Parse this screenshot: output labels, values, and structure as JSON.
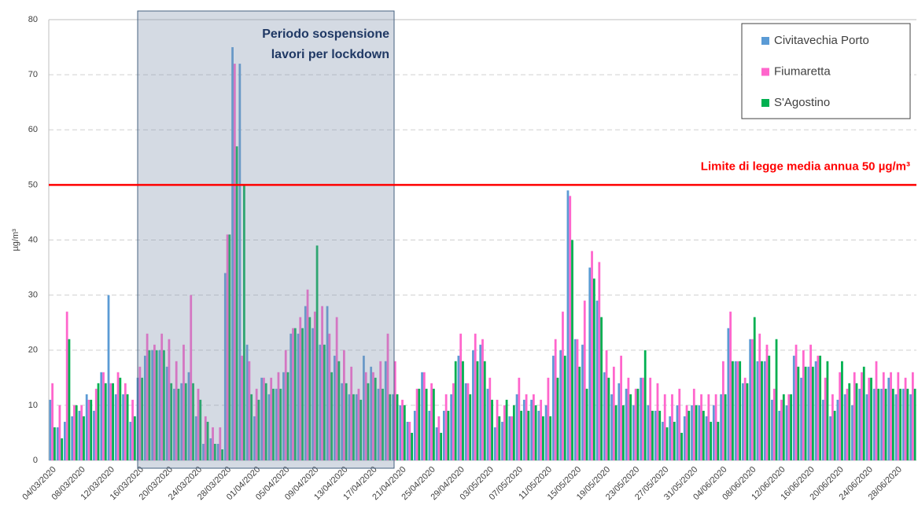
{
  "chart_data": {
    "type": "bar",
    "ylabel": "µg/m³",
    "ylim": [
      0,
      80
    ],
    "yticks": [
      0,
      10,
      20,
      30,
      40,
      50,
      60,
      70,
      80
    ],
    "grid": true,
    "legend": "top-right",
    "annotation": [
      "Periodo sospensione",
      "lavori per lockdown"
    ],
    "reference_line": {
      "value": 50,
      "label": "Limite di legge media annua 50 µg/m³",
      "color": "#ff0000"
    },
    "categories": [
      "04/03/2020",
      null,
      null,
      null,
      "08/03/2020",
      null,
      null,
      null,
      "12/03/2020",
      null,
      null,
      null,
      "16/03/2020",
      null,
      null,
      null,
      "20/03/2020",
      null,
      null,
      null,
      "24/03/2020",
      null,
      null,
      null,
      "28/03/2020",
      null,
      null,
      null,
      "01/04/2020",
      null,
      null,
      null,
      "05/04/2020",
      null,
      null,
      null,
      "09/04/2020",
      null,
      null,
      null,
      "13/04/2020",
      null,
      null,
      null,
      "17/04/2020",
      null,
      null,
      null,
      "21/04/2020",
      null,
      null,
      null,
      "25/04/2020",
      null,
      null,
      null,
      "29/04/2020",
      null,
      null,
      null,
      "03/05/2020",
      null,
      null,
      null,
      "07/05/2020",
      null,
      null,
      null,
      "11/05/2020",
      null,
      null,
      null,
      "15/05/2020",
      null,
      null,
      null,
      "19/05/2020",
      null,
      null,
      null,
      "23/05/2020",
      null,
      null,
      null,
      "27/05/2020",
      null,
      null,
      null,
      "31/05/2020",
      null,
      null,
      null,
      "04/06/2020",
      null,
      null,
      null,
      "08/06/2020",
      null,
      null,
      null,
      "12/06/2020",
      null,
      null,
      null,
      "16/06/2020",
      null,
      null,
      null,
      "20/06/2020",
      null,
      null,
      null,
      "24/06/2020",
      null,
      null,
      null,
      "28/06/2020",
      null,
      null
    ],
    "series": [
      {
        "name": "Civitavechia Porto",
        "color": "#5b9bd5",
        "values": [
          11,
          6,
          7,
          8,
          9,
          12,
          9,
          16,
          30,
          12,
          12,
          7,
          15,
          19,
          20,
          20,
          17,
          13,
          14,
          16,
          8,
          3,
          4,
          3,
          34,
          75,
          72,
          21,
          8,
          15,
          12,
          13,
          16,
          23,
          23,
          28,
          24,
          21,
          28,
          19,
          14,
          12,
          12,
          19,
          17,
          13,
          18,
          12,
          10,
          7,
          9,
          16,
          9,
          6,
          9,
          12,
          19,
          14,
          20,
          21,
          13,
          6,
          7,
          8,
          12,
          11,
          11,
          9,
          10,
          19,
          20,
          49,
          22,
          21,
          35,
          29,
          16,
          12,
          14,
          13,
          10,
          15,
          10,
          9,
          7,
          8,
          10,
          8,
          10,
          10,
          8,
          10,
          12,
          24,
          18,
          14,
          22,
          18,
          18,
          11,
          9,
          10,
          19,
          15,
          17,
          18,
          11,
          8,
          11,
          12,
          10,
          13,
          12,
          13,
          13,
          15,
          12,
          13,
          12
        ]
      },
      {
        "name": "Fiumaretta",
        "color": "#ff66cc",
        "values": [
          14,
          10,
          27,
          10,
          10,
          11,
          13,
          16,
          14,
          16,
          14,
          11,
          17,
          23,
          21,
          23,
          22,
          18,
          21,
          30,
          13,
          8,
          6,
          6,
          41,
          72,
          19,
          18,
          13,
          15,
          15,
          16,
          20,
          24,
          26,
          31,
          27,
          28,
          23,
          26,
          20,
          17,
          13,
          16,
          16,
          18,
          23,
          18,
          11,
          7,
          13,
          16,
          14,
          8,
          12,
          14,
          23,
          14,
          23,
          22,
          15,
          11,
          10,
          8,
          15,
          12,
          12,
          11,
          15,
          22,
          27,
          48,
          22,
          29,
          38,
          36,
          20,
          17,
          19,
          15,
          13,
          15,
          15,
          14,
          12,
          12,
          13,
          10,
          13,
          12,
          12,
          12,
          18,
          27,
          18,
          15,
          22,
          23,
          21,
          13,
          11,
          12,
          21,
          20,
          21,
          19,
          15,
          12,
          16,
          13,
          16,
          16,
          15,
          18,
          16,
          16,
          16,
          15,
          16
        ]
      },
      {
        "name": "S'Agostino",
        "color": "#00b050",
        "values": [
          6,
          4,
          22,
          10,
          8,
          11,
          14,
          14,
          14,
          15,
          12,
          8,
          15,
          20,
          20,
          20,
          14,
          13,
          14,
          14,
          11,
          7,
          3,
          2,
          41,
          57,
          50,
          12,
          11,
          14,
          13,
          13,
          16,
          24,
          24,
          26,
          39,
          21,
          16,
          18,
          14,
          12,
          11,
          14,
          15,
          13,
          12,
          12,
          10,
          5,
          13,
          13,
          13,
          5,
          9,
          18,
          18,
          12,
          18,
          18,
          11,
          8,
          11,
          10,
          9,
          9,
          10,
          8,
          8,
          15,
          19,
          40,
          17,
          13,
          33,
          26,
          15,
          10,
          10,
          12,
          13,
          20,
          9,
          9,
          6,
          7,
          5,
          9,
          10,
          9,
          7,
          7,
          12,
          18,
          18,
          14,
          26,
          18,
          19,
          22,
          12,
          12,
          17,
          17,
          17,
          19,
          18,
          9,
          18,
          14,
          14,
          17,
          15,
          13,
          13,
          13,
          13,
          13,
          13
        ]
      }
    ]
  }
}
